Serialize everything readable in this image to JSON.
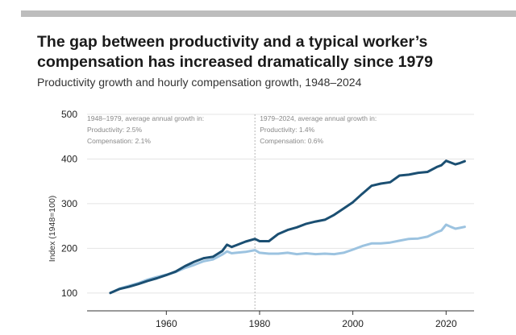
{
  "header": {
    "title": "The gap between productivity and a typical worker’s compensation has increased dramatically since 1979",
    "subtitle": "Productivity growth and hourly compensation growth, 1948–2024"
  },
  "chart_data": {
    "type": "line",
    "ylabel": "Index (1948=100)",
    "xlim": [
      1943,
      2026
    ],
    "ylim": [
      60,
      500
    ],
    "y_ticks": [
      100,
      200,
      300,
      400,
      500
    ],
    "x_ticks": [
      1960,
      1980,
      2000,
      2020
    ],
    "grid": "horizontal",
    "divider_year": 1979,
    "annotations": [
      {
        "period": "1948–1979, average annual growth in:",
        "productivity": "Productivity: 2.5%",
        "compensation": "Compensation: 2.1%"
      },
      {
        "period": "1979–2024, average annual growth in:",
        "productivity": "Productivity: 1.4%",
        "compensation": "Compensation: 0.6%"
      }
    ],
    "colors": {
      "productivity": "#1b4f72",
      "compensation": "#9cc3e0",
      "grid": "#e4e4e4",
      "divider": "#b5b5b5",
      "axis": "#333333"
    },
    "series": [
      {
        "key": "productivity",
        "x": [
          1948,
          1950,
          1952,
          1954,
          1956,
          1958,
          1960,
          1962,
          1964,
          1966,
          1968,
          1970,
          1972,
          1973,
          1974,
          1975,
          1977,
          1979,
          1980,
          1982,
          1984,
          1986,
          1988,
          1990,
          1992,
          1994,
          1996,
          1998,
          2000,
          2002,
          2004,
          2006,
          2008,
          2010,
          2012,
          2014,
          2016,
          2018,
          2019,
          2020,
          2021,
          2022,
          2023,
          2024
        ],
        "values": [
          100,
          109,
          114,
          120,
          127,
          133,
          140,
          148,
          160,
          170,
          178,
          181,
          194,
          208,
          203,
          207,
          215,
          221,
          216,
          216,
          232,
          241,
          247,
          255,
          260,
          264,
          275,
          289,
          303,
          322,
          340,
          345,
          348,
          363,
          365,
          369,
          371,
          382,
          386,
          396,
          392,
          388,
          391,
          395
        ]
      },
      {
        "key": "compensation",
        "x": [
          1948,
          1950,
          1952,
          1954,
          1956,
          1958,
          1960,
          1962,
          1964,
          1966,
          1968,
          1970,
          1972,
          1973,
          1974,
          1975,
          1977,
          1979,
          1980,
          1982,
          1984,
          1986,
          1988,
          1990,
          1992,
          1994,
          1996,
          1998,
          2000,
          2002,
          2004,
          2006,
          2008,
          2010,
          2012,
          2014,
          2016,
          2018,
          2019,
          2020,
          2021,
          2022,
          2023,
          2024
        ],
        "values": [
          100,
          110,
          116,
          122,
          130,
          136,
          141,
          147,
          156,
          163,
          171,
          175,
          186,
          193,
          189,
          190,
          192,
          196,
          190,
          188,
          188,
          190,
          187,
          189,
          187,
          188,
          187,
          190,
          197,
          205,
          211,
          211,
          213,
          217,
          221,
          222,
          226,
          236,
          240,
          253,
          248,
          244,
          246,
          248
        ]
      }
    ]
  }
}
